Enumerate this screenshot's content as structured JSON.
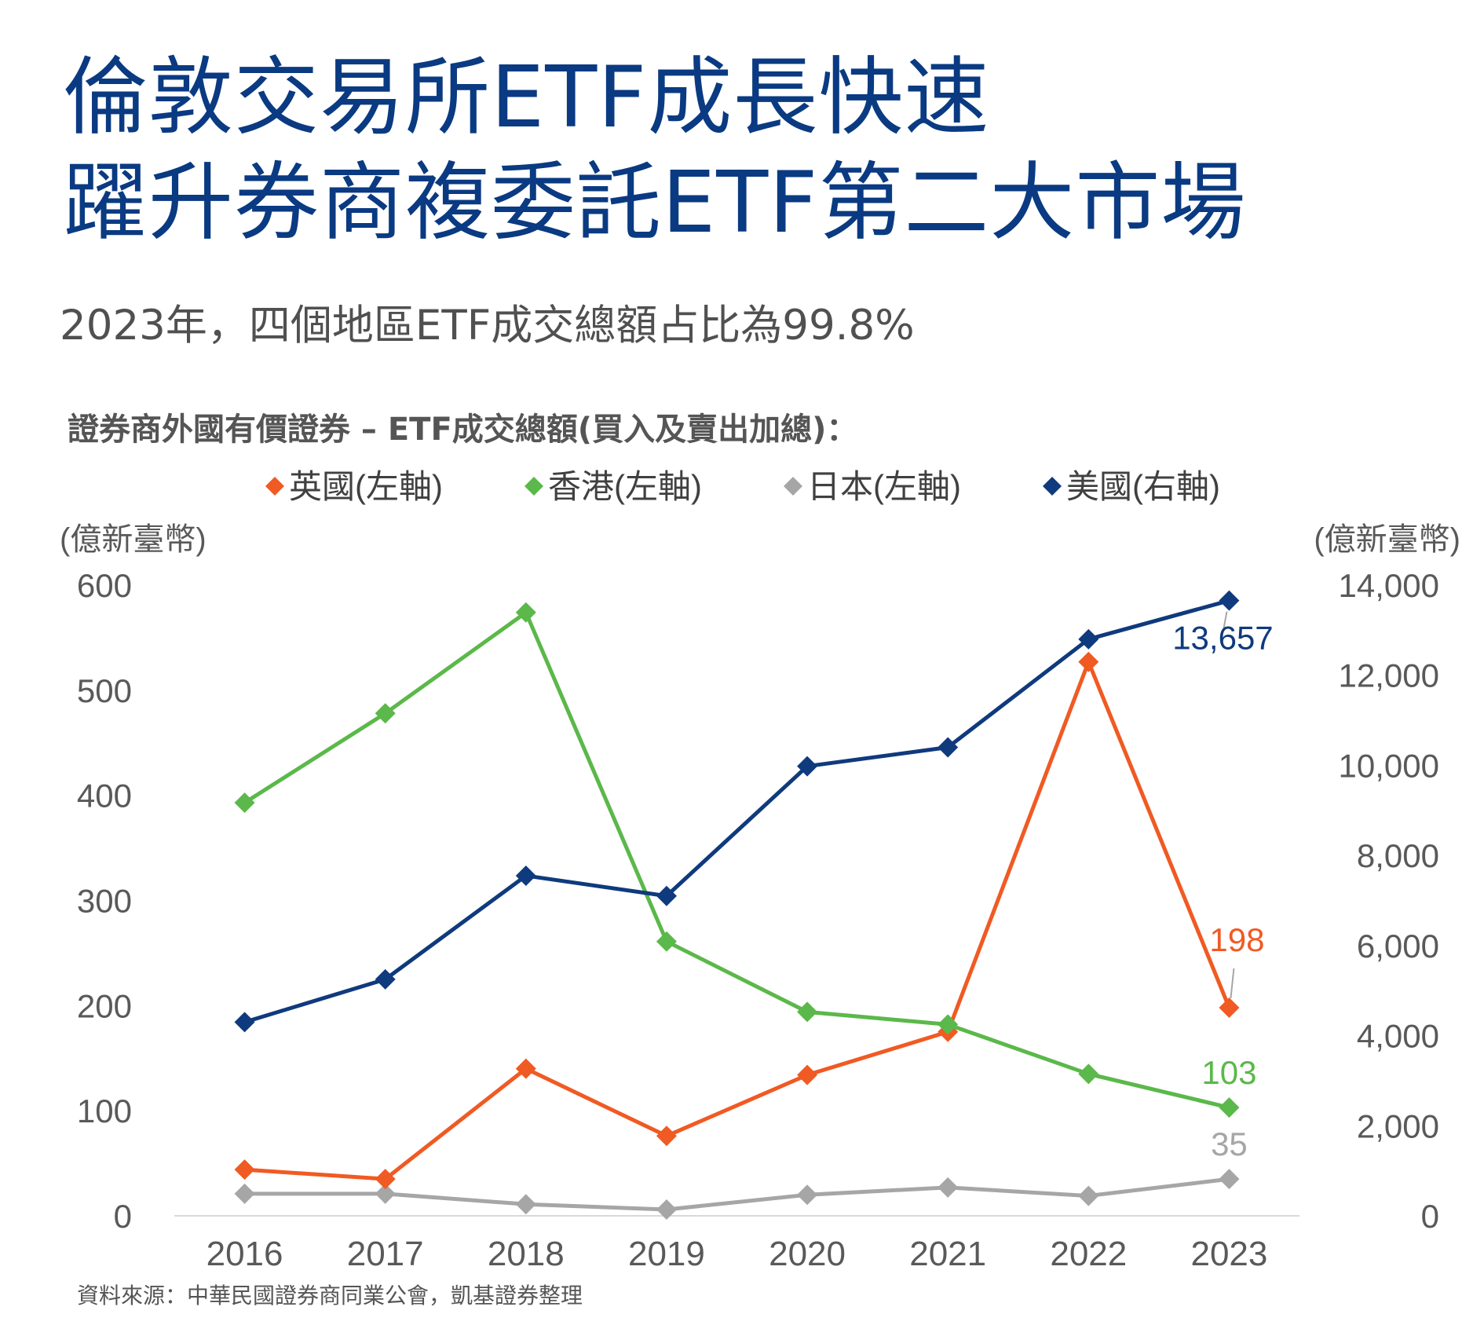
{
  "title_lines": [
    "倫敦交易所ETF成長快速",
    "躍升券商複委託ETF第二大市場"
  ],
  "subtitle": "2023年，四個地區ETF成交總額占比為99.8%",
  "chart_heading": "證券商外國有價證券 – ETF成交總額(買入及賣出加總)：",
  "source": "資料來源：中華民國證券商同業公會，凱基證券整理",
  "colors": {
    "title": "#0a3a82",
    "uk": "#f05a23",
    "hk": "#5bb84a",
    "jp": "#a6a6a6",
    "us": "#0f3a7d",
    "axis_text": "#595959",
    "baseline": "#d9d9d9"
  },
  "chart_data": {
    "type": "line",
    "x": [
      "2016",
      "2017",
      "2018",
      "2019",
      "2020",
      "2021",
      "2022",
      "2023"
    ],
    "y_left": {
      "unit": "(億新臺幣)",
      "range": [
        0,
        600
      ],
      "ticks": [
        "0",
        "100",
        "200",
        "300",
        "400",
        "500",
        "600"
      ]
    },
    "y_right": {
      "unit": "(億新臺幣)",
      "range": [
        0,
        14000
      ],
      "ticks": [
        "0",
        "2,000",
        "4,000",
        "6,000",
        "8,000",
        "10,000",
        "12,000",
        "14,000"
      ]
    },
    "legend_position": "top",
    "grid": false,
    "marker": "diamond",
    "series": [
      {
        "key": "uk",
        "name": "英國(左軸)",
        "axis": "left",
        "values": [
          44,
          35,
          140,
          76,
          134,
          175,
          527,
          198
        ],
        "end_label": "198"
      },
      {
        "key": "hk",
        "name": "香港(左軸)",
        "axis": "left",
        "values": [
          393,
          478,
          574,
          261,
          194,
          182,
          135,
          103
        ],
        "end_label": "103"
      },
      {
        "key": "jp",
        "name": "日本(左軸)",
        "axis": "left",
        "values": [
          21,
          21,
          11,
          6,
          20,
          27,
          19,
          35
        ],
        "end_label": "35"
      },
      {
        "key": "us",
        "name": "美國(右軸)",
        "axis": "right",
        "values": [
          4300,
          5250,
          7550,
          7100,
          9980,
          10400,
          12800,
          13657
        ],
        "end_label": "13,657"
      }
    ]
  }
}
